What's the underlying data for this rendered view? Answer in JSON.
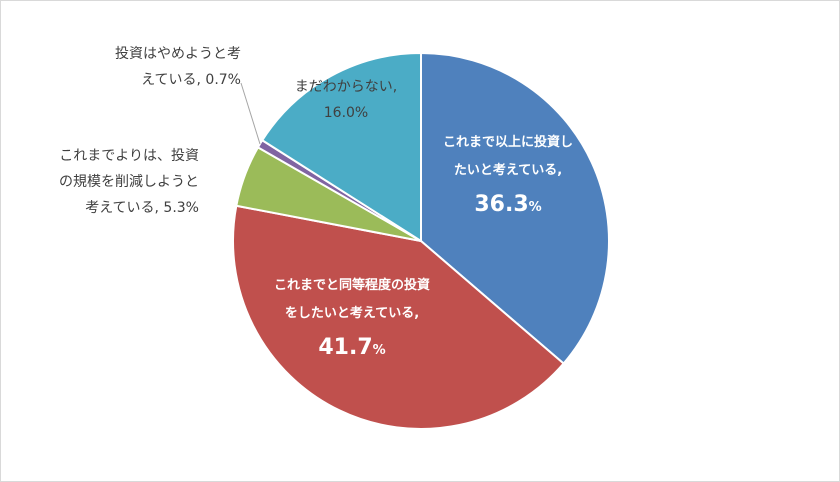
{
  "chart_data": {
    "type": "pie",
    "title": "",
    "start_angle_deg": 0,
    "direction": "clockwise",
    "slices": [
      {
        "label_lines": [
          "これまで以上に投資し",
          "たいと考えている,"
        ],
        "value_text": "36.3",
        "pct_sign": "%",
        "value": 36.3,
        "color": "#4f81bd"
      },
      {
        "label_lines": [
          "これまでと同等程度の投資",
          "をしたいと考えている,"
        ],
        "value_text": "41.7",
        "pct_sign": "%",
        "value": 41.7,
        "color": "#c0504d"
      },
      {
        "label_lines": [
          "これまでよりは、投資",
          "の規模を削減しようと",
          "考えている, 5.3%"
        ],
        "value": 5.3,
        "color": "#9bbb59"
      },
      {
        "label_lines": [
          "投資はやめようと考",
          "えている, 0.7%"
        ],
        "value": 0.7,
        "color": "#8064a2"
      },
      {
        "label_lines": [
          "まだわからない,",
          "16.0%"
        ],
        "value": 16.0,
        "color": "#4bacc6"
      }
    ]
  }
}
